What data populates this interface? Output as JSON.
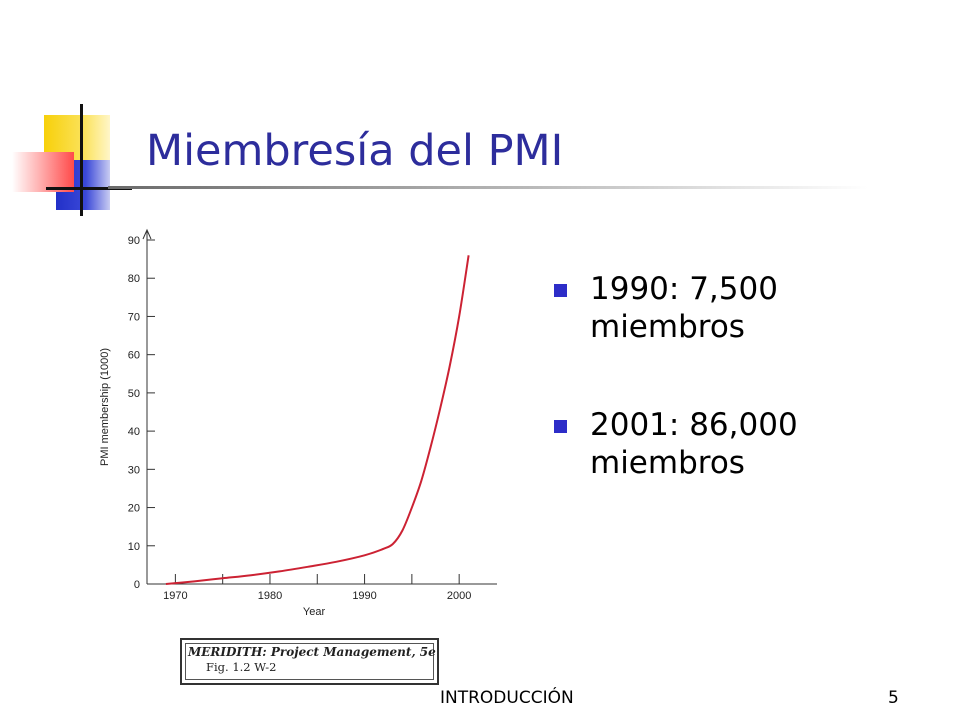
{
  "slide": {
    "title": "Miembresía del PMI",
    "bullets": [
      "1990: 7,500 miembros",
      "2001: 86,000 miembros"
    ],
    "footer": "INTRODUCCIÓN",
    "page_number": "5",
    "citation": {
      "line1": "MERIDITH: Project Management, 5e",
      "line2": "Fig. 1.2       W-2"
    },
    "colors": {
      "title": "#2d2d9c",
      "bullet": "#2d2dc8",
      "curve": "#cc2233"
    }
  },
  "chart_data": {
    "type": "line",
    "xlabel": "Year",
    "ylabel": "PMI membership (1000)",
    "x_ticks": [
      1970,
      1980,
      1990,
      2000
    ],
    "y_ticks": [
      0,
      10,
      20,
      30,
      40,
      50,
      60,
      70,
      80,
      90
    ],
    "xlim": [
      1967,
      2004
    ],
    "ylim": [
      0,
      90
    ],
    "series": [
      {
        "x": [
          1969,
          1972,
          1975,
          1978,
          1981,
          1984,
          1987,
          1990,
          1992,
          1993,
          1994,
          1995,
          1996,
          1997,
          1998,
          1999,
          2000,
          2001
        ],
        "values": [
          0,
          0.7,
          1.5,
          2.3,
          3.3,
          4.5,
          5.8,
          7.5,
          9.2,
          10.5,
          14,
          20,
          27,
          36,
          46,
          57,
          70,
          86
        ]
      }
    ]
  }
}
